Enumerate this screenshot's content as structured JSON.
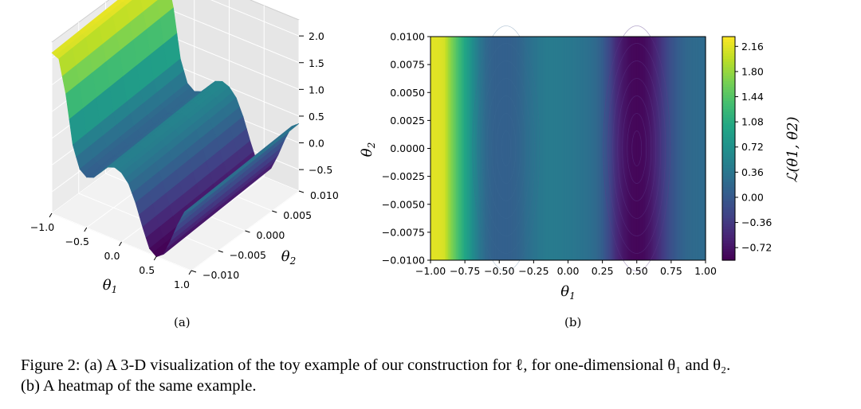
{
  "figure": {
    "panel_a_label": "(a)",
    "panel_b_label": "(b)",
    "caption_line1": "Figure 2: (a) A 3-D visualization of the toy example of our construction for ℓ, for one-dimensional θ₁ and θ₂.",
    "caption_line2": "(b) A heatmap of the same example."
  },
  "chart_data": [
    {
      "type": "surface",
      "panel": "(a)",
      "xlabel": "θ1",
      "ylabel": "θ2",
      "x_ticks": [
        "−1.0",
        "−0.5",
        "0.0",
        "0.5",
        "1.0"
      ],
      "y_ticks": [
        "−0.010",
        "−0.005",
        "0.000",
        "0.005",
        "0.010"
      ],
      "z_ticks": [
        "−0.5",
        "0.0",
        "0.5",
        "1.0",
        "1.5",
        "2.0"
      ],
      "xlim": [
        -1.0,
        1.0
      ],
      "ylim": [
        -0.01,
        0.01
      ],
      "zlim": [
        -0.9,
        2.3
      ],
      "colormap": "viridis",
      "grid": true,
      "profile_theta1": [
        -1.0,
        -0.9,
        -0.8,
        -0.7,
        -0.6,
        -0.5,
        -0.4,
        -0.3,
        -0.2,
        -0.1,
        0.0,
        0.1,
        0.2,
        0.3,
        0.4,
        0.5,
        0.6,
        0.7,
        0.8,
        0.9,
        1.0
      ],
      "profile_loss": [
        2.16,
        2.1,
        1.5,
        0.6,
        0.2,
        0.1,
        0.15,
        0.3,
        0.45,
        0.5,
        0.45,
        0.3,
        0.0,
        -0.4,
        -0.75,
        -0.85,
        -0.75,
        -0.45,
        -0.1,
        0.2,
        0.3
      ]
    },
    {
      "type": "heatmap",
      "panel": "(b)",
      "xlabel": "θ1",
      "ylabel": "θ2",
      "x_ticks": [
        "−1.00",
        "−0.75",
        "−0.50",
        "−0.25",
        "0.00",
        "0.25",
        "0.50",
        "0.75",
        "1.00"
      ],
      "y_ticks": [
        "0.0100",
        "0.0075",
        "0.0050",
        "0.0025",
        "0.0000",
        "−0.0025",
        "−0.0050",
        "−0.0075",
        "−0.0100"
      ],
      "xlim": [
        -1.0,
        1.0
      ],
      "ylim": [
        -0.01,
        0.01
      ],
      "colormap": "viridis",
      "colorbar_label": "ℒ(θ1, θ2)",
      "colorbar_ticks": [
        "2.16",
        "1.80",
        "1.44",
        "1.08",
        "0.72",
        "0.36",
        "0.00",
        "−0.36",
        "−0.72"
      ],
      "colorbar_range": [
        -0.9,
        2.3
      ],
      "profile_theta1": [
        -1.0,
        -0.95,
        -0.9,
        -0.85,
        -0.8,
        -0.75,
        -0.7,
        -0.65,
        -0.6,
        -0.55,
        -0.5,
        -0.45,
        -0.4,
        -0.35,
        -0.3,
        -0.25,
        -0.2,
        -0.15,
        -0.1,
        -0.05,
        0.0,
        0.05,
        0.1,
        0.15,
        0.2,
        0.25,
        0.3,
        0.35,
        0.4,
        0.45,
        0.5,
        0.55,
        0.6,
        0.65,
        0.7,
        0.75,
        0.8,
        0.85,
        0.9,
        0.95,
        1.0
      ],
      "profile_loss": [
        2.16,
        2.16,
        2.1,
        1.7,
        1.35,
        1.0,
        0.7,
        0.4,
        0.2,
        0.1,
        0.08,
        0.08,
        0.1,
        0.15,
        0.25,
        0.32,
        0.38,
        0.42,
        0.42,
        0.4,
        0.38,
        0.36,
        0.32,
        0.28,
        0.2,
        0.05,
        -0.2,
        -0.5,
        -0.7,
        -0.82,
        -0.85,
        -0.82,
        -0.7,
        -0.5,
        -0.3,
        -0.1,
        0.05,
        0.15,
        0.2,
        0.22,
        0.22
      ]
    }
  ]
}
